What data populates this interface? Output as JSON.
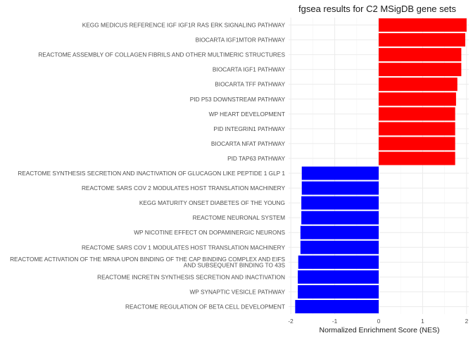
{
  "chart_data": {
    "type": "bar",
    "orientation": "horizontal",
    "title": "fgsea results for C2 MSigDB gene sets",
    "xlabel": "Normalized Enrichment Score (NES)",
    "ylabel": "",
    "xlim": [
      -2.05,
      2.05
    ],
    "xticks": [
      -2,
      -1,
      0,
      1,
      2
    ],
    "grid": true,
    "legend": "none",
    "colors": {
      "positive": "#ff0000",
      "negative": "#0000ff"
    },
    "categories": [
      "KEGG MEDICUS REFERENCE IGF IGF1R RAS ERK SIGNALING PATHWAY",
      "BIOCARTA IGF1MTOR PATHWAY",
      "REACTOME ASSEMBLY OF COLLAGEN FIBRILS AND OTHER MULTIMERIC STRUCTURES",
      "BIOCARTA IGF1 PATHWAY",
      "BIOCARTA TFF PATHWAY",
      "PID P53 DOWNSTREAM PATHWAY",
      "WP HEART DEVELOPMENT",
      "PID INTEGRIN1 PATHWAY",
      "BIOCARTA NFAT PATHWAY",
      "PID TAP63 PATHWAY",
      "REACTOME SYNTHESIS SECRETION AND INACTIVATION OF GLUCAGON LIKE PEPTIDE 1 GLP 1",
      "REACTOME SARS COV 2 MODULATES HOST TRANSLATION MACHINERY",
      "KEGG MATURITY ONSET DIABETES OF THE YOUNG",
      "REACTOME NEURONAL SYSTEM",
      "WP NICOTINE EFFECT ON DOPAMINERGIC NEURONS",
      "REACTOME SARS COV 1 MODULATES HOST TRANSLATION MACHINERY",
      "REACTOME ACTIVATION OF THE MRNA UPON BINDING OF THE CAP BINDING COMPLEX AND EIFS\nAND SUBSEQUENT BINDING TO 43S",
      "REACTOME INCRETIN SYNTHESIS SECRETION AND INACTIVATION",
      "WP SYNAPTIC VESICLE PATHWAY",
      "REACTOME REGULATION OF BETA CELL DEVELOPMENT"
    ],
    "values": [
      2.0,
      1.97,
      1.88,
      1.88,
      1.79,
      1.76,
      1.74,
      1.74,
      1.74,
      1.74,
      -1.75,
      -1.75,
      -1.76,
      -1.76,
      -1.78,
      -1.78,
      -1.83,
      -1.84,
      -1.84,
      -1.9
    ]
  }
}
